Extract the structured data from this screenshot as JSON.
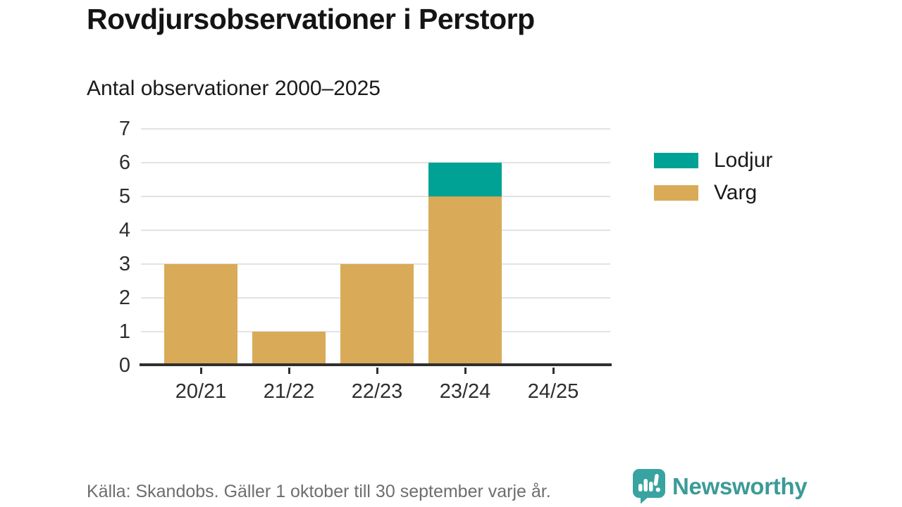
{
  "header": {
    "title": "Rovdjursobservationer i Perstorp",
    "subtitle": "Antal observationer 2000–2025"
  },
  "chart_data": {
    "type": "bar",
    "stacked": true,
    "title": "Rovdjursobservationer i Perstorp",
    "subtitle": "Antal observationer 2000–2025",
    "categories": [
      "20/21",
      "21/22",
      "22/23",
      "23/24",
      "24/25"
    ],
    "series": [
      {
        "name": "Lodjur",
        "color": "#00a295",
        "values": [
          0,
          0,
          0,
          1,
          0
        ]
      },
      {
        "name": "Varg",
        "color": "#d9ab58",
        "values": [
          3,
          1,
          3,
          5,
          0
        ]
      }
    ],
    "xlabel": "",
    "ylabel": "",
    "ylim": [
      0,
      7
    ],
    "yticks": [
      0,
      1,
      2,
      3,
      4,
      5,
      6,
      7
    ],
    "grid": true,
    "legend_position": "right"
  },
  "footer": {
    "source": "Källa: Skandobs. Gäller 1 oktober till 30 september varje år.",
    "brand": "Newsworthy"
  },
  "colors": {
    "lodjur": "#00a295",
    "varg": "#d9ab58",
    "brand_teal": "#3b9b97",
    "grid": "#e3e3e3",
    "axis": "#2f2f2f",
    "text": "#1a1a1a",
    "muted": "#6e6e6e"
  }
}
